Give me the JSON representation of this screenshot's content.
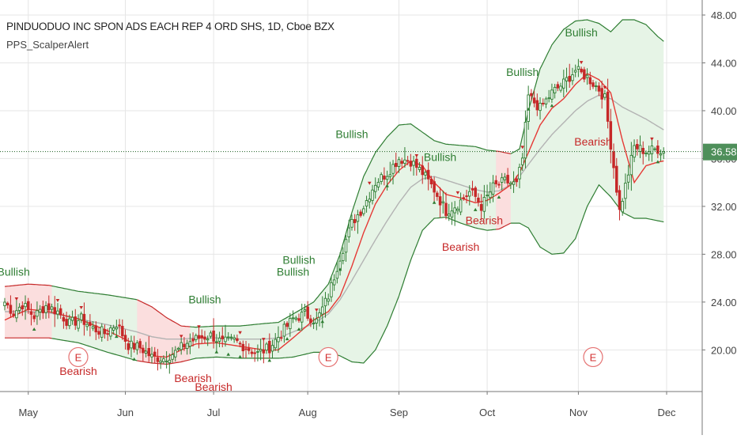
{
  "chart_data": {
    "type": "candlestick",
    "title": "PINDUODUO INC SPON ADS EACH REP 4 ORD SHS, 1D, Cboe BZX",
    "indicator": "PPS_ScalperAlert",
    "x_ticks": [
      "May",
      "Jun",
      "Jul",
      "Aug",
      "Sep",
      "Oct",
      "Nov",
      "Dec"
    ],
    "y_ticks": [
      "20.00",
      "24.00",
      "28.00",
      "32.00",
      "36.00",
      "40.00",
      "44.00",
      "48.00"
    ],
    "ylim": [
      16.3,
      49.0
    ],
    "last_price": 36.58,
    "last_price_label": "36.58",
    "colors": {
      "up": "#2e7d32",
      "down": "#c62828",
      "band_bull": "#e6f4e6",
      "band_bear": "#fbdede",
      "midline": "#b3b3b3",
      "ma": "#e53935",
      "price_line": "#1b5e20"
    },
    "bollinger": {
      "upper": [
        [
          0,
          25.3
        ],
        [
          8,
          25.5
        ],
        [
          15,
          25.4
        ],
        [
          25,
          24.9
        ],
        [
          35,
          24.6
        ],
        [
          45,
          24.2
        ],
        [
          50,
          23.6
        ],
        [
          55,
          22.7
        ],
        [
          60,
          22.0
        ],
        [
          65,
          21.9
        ],
        [
          72,
          22.0
        ],
        [
          80,
          22.0
        ],
        [
          88,
          22.2
        ],
        [
          93,
          22.3
        ],
        [
          98,
          23.0
        ],
        [
          105,
          24.0
        ],
        [
          110,
          25.5
        ],
        [
          114,
          28.0
        ],
        [
          118,
          31.5
        ],
        [
          122,
          34.5
        ],
        [
          126,
          36.5
        ],
        [
          130,
          37.8
        ],
        [
          134,
          38.8
        ],
        [
          138,
          38.9
        ],
        [
          142,
          38.2
        ],
        [
          146,
          37.5
        ],
        [
          150,
          37.2
        ],
        [
          155,
          37.1
        ],
        [
          160,
          37.0
        ],
        [
          164,
          36.7
        ],
        [
          168,
          36.6
        ],
        [
          172,
          36.4
        ],
        [
          175,
          36.8
        ],
        [
          178,
          40.0
        ],
        [
          182,
          43.5
        ],
        [
          186,
          45.5
        ],
        [
          190,
          46.8
        ],
        [
          194,
          47.5
        ],
        [
          198,
          47.6
        ],
        [
          202,
          47.3
        ],
        [
          206,
          46.6
        ],
        [
          210,
          47.6
        ],
        [
          214,
          47.6
        ],
        [
          218,
          47.2
        ],
        [
          222,
          46.2
        ],
        [
          224,
          45.8
        ]
      ],
      "middle": [
        [
          0,
          23.2
        ],
        [
          8,
          23.2
        ],
        [
          15,
          23.1
        ],
        [
          25,
          22.6
        ],
        [
          35,
          22.1
        ],
        [
          45,
          21.5
        ],
        [
          50,
          21.1
        ],
        [
          55,
          20.9
        ],
        [
          60,
          20.9
        ],
        [
          65,
          21.0
        ],
        [
          72,
          21.0
        ],
        [
          80,
          20.9
        ],
        [
          88,
          20.9
        ],
        [
          93,
          21.0
        ],
        [
          98,
          21.5
        ],
        [
          105,
          22.2
        ],
        [
          110,
          23.0
        ],
        [
          114,
          24.2
        ],
        [
          118,
          25.8
        ],
        [
          122,
          27.5
        ],
        [
          126,
          29.2
        ],
        [
          130,
          30.8
        ],
        [
          134,
          32.3
        ],
        [
          138,
          33.6
        ],
        [
          142,
          34.3
        ],
        [
          146,
          34.5
        ],
        [
          150,
          34.2
        ],
        [
          155,
          33.8
        ],
        [
          160,
          33.4
        ],
        [
          164,
          33.2
        ],
        [
          168,
          33.3
        ],
        [
          172,
          33.8
        ],
        [
          175,
          34.5
        ],
        [
          178,
          35.5
        ],
        [
          182,
          36.8
        ],
        [
          186,
          38.0
        ],
        [
          190,
          39.0
        ],
        [
          194,
          40.0
        ],
        [
          198,
          40.8
        ],
        [
          202,
          41.3
        ],
        [
          206,
          41.0
        ],
        [
          210,
          40.3
        ],
        [
          214,
          39.8
        ],
        [
          218,
          39.3
        ],
        [
          222,
          38.7
        ],
        [
          224,
          38.4
        ]
      ],
      "lower": [
        [
          0,
          21.0
        ],
        [
          8,
          21.0
        ],
        [
          15,
          21.0
        ],
        [
          25,
          20.6
        ],
        [
          35,
          19.8
        ],
        [
          45,
          19.1
        ],
        [
          50,
          18.9
        ],
        [
          55,
          18.8
        ],
        [
          60,
          19.0
        ],
        [
          65,
          19.3
        ],
        [
          72,
          19.4
        ],
        [
          80,
          19.3
        ],
        [
          88,
          19.3
        ],
        [
          93,
          19.3
        ],
        [
          98,
          19.4
        ],
        [
          105,
          19.8
        ],
        [
          110,
          19.8
        ],
        [
          114,
          19.5
        ],
        [
          118,
          19.0
        ],
        [
          122,
          18.9
        ],
        [
          126,
          20.0
        ],
        [
          130,
          22.0
        ],
        [
          134,
          24.5
        ],
        [
          138,
          27.5
        ],
        [
          142,
          30.0
        ],
        [
          146,
          31.0
        ],
        [
          150,
          31.1
        ],
        [
          155,
          30.6
        ],
        [
          160,
          30.2
        ],
        [
          164,
          30.0
        ],
        [
          168,
          30.1
        ],
        [
          172,
          30.6
        ],
        [
          175,
          30.6
        ],
        [
          178,
          30.2
        ],
        [
          182,
          28.6
        ],
        [
          186,
          28.0
        ],
        [
          190,
          28.1
        ],
        [
          194,
          29.3
        ],
        [
          198,
          32.0
        ],
        [
          202,
          33.8
        ],
        [
          206,
          32.8
        ],
        [
          210,
          31.5
        ],
        [
          214,
          31.0
        ],
        [
          218,
          31.0
        ],
        [
          222,
          30.8
        ],
        [
          224,
          30.7
        ]
      ]
    },
    "ma": [
      [
        0,
        22.5
      ],
      [
        8,
        23.4
      ],
      [
        15,
        23.2
      ],
      [
        25,
        22.6
      ],
      [
        35,
        21.6
      ],
      [
        45,
        20.4
      ],
      [
        50,
        19.5
      ],
      [
        55,
        19.4
      ],
      [
        60,
        20.0
      ],
      [
        65,
        20.5
      ],
      [
        72,
        20.6
      ],
      [
        80,
        20.3
      ],
      [
        88,
        20.0
      ],
      [
        93,
        20.0
      ],
      [
        98,
        21.0
      ],
      [
        105,
        22.5
      ],
      [
        110,
        23.2
      ],
      [
        114,
        24.5
      ],
      [
        118,
        27.0
      ],
      [
        122,
        29.8
      ],
      [
        126,
        32.2
      ],
      [
        130,
        33.8
      ],
      [
        134,
        35.0
      ],
      [
        138,
        35.8
      ],
      [
        142,
        35.4
      ],
      [
        146,
        34.0
      ],
      [
        150,
        33.0
      ],
      [
        155,
        32.7
      ],
      [
        160,
        32.3
      ],
      [
        164,
        32.5
      ],
      [
        168,
        33.1
      ],
      [
        172,
        33.8
      ],
      [
        175,
        34.8
      ],
      [
        178,
        36.5
      ],
      [
        182,
        38.8
      ],
      [
        186,
        40.2
      ],
      [
        190,
        41.0
      ],
      [
        194,
        42.2
      ],
      [
        198,
        43.1
      ],
      [
        202,
        42.6
      ],
      [
        206,
        41.5
      ],
      [
        210,
        37.5
      ],
      [
        214,
        34.0
      ],
      [
        218,
        35.4
      ],
      [
        222,
        35.7
      ],
      [
        224,
        35.8
      ]
    ],
    "bear_zones": [
      [
        0,
        16
      ],
      [
        45,
        63
      ],
      [
        167,
        172
      ]
    ],
    "key_closes": [
      [
        0,
        24.0
      ],
      [
        3,
        23.1
      ],
      [
        6,
        23.8
      ],
      [
        10,
        22.8
      ],
      [
        14,
        23.7
      ],
      [
        18,
        23.2
      ],
      [
        22,
        22.2
      ],
      [
        26,
        22.6
      ],
      [
        30,
        21.8
      ],
      [
        34,
        21.4
      ],
      [
        38,
        22.2
      ],
      [
        42,
        20.4
      ],
      [
        46,
        20.2
      ],
      [
        50,
        19.4
      ],
      [
        54,
        19.3
      ],
      [
        58,
        19.8
      ],
      [
        62,
        20.6
      ],
      [
        66,
        21.0
      ],
      [
        70,
        21.2
      ],
      [
        74,
        20.6
      ],
      [
        78,
        20.8
      ],
      [
        82,
        20.2
      ],
      [
        86,
        19.7
      ],
      [
        90,
        20.2
      ],
      [
        94,
        21.4
      ],
      [
        98,
        22.6
      ],
      [
        102,
        23.0
      ],
      [
        106,
        22.4
      ],
      [
        110,
        24.5
      ],
      [
        114,
        27.8
      ],
      [
        118,
        30.6
      ],
      [
        122,
        32.0
      ],
      [
        126,
        34.0
      ],
      [
        130,
        34.8
      ],
      [
        134,
        36.0
      ],
      [
        138,
        35.8
      ],
      [
        142,
        34.8
      ],
      [
        146,
        33.4
      ],
      [
        150,
        31.6
      ],
      [
        154,
        32.2
      ],
      [
        158,
        33.2
      ],
      [
        160,
        32.8
      ],
      [
        162,
        32.0
      ],
      [
        166,
        33.6
      ],
      [
        170,
        34.1
      ],
      [
        174,
        33.8
      ],
      [
        176,
        36.0
      ],
      [
        178,
        41.2
      ],
      [
        182,
        40.2
      ],
      [
        186,
        41.5
      ],
      [
        190,
        42.3
      ],
      [
        194,
        43.4
      ],
      [
        198,
        42.8
      ],
      [
        202,
        41.8
      ],
      [
        204,
        41.0
      ],
      [
        206,
        37.2
      ],
      [
        209,
        31.6
      ],
      [
        212,
        34.8
      ],
      [
        214,
        37.0
      ],
      [
        218,
        36.6
      ],
      [
        222,
        36.8
      ],
      [
        224,
        36.6
      ]
    ],
    "bull_labels": [
      {
        "text": "Bullish",
        "x": 3,
        "y": 26.2
      },
      {
        "text": "Bullish",
        "x": 68,
        "y": 23.9
      },
      {
        "text": "Bullish",
        "x": 98,
        "y": 26.2
      },
      {
        "text": "Bullish",
        "x": 100,
        "y": 27.2
      },
      {
        "text": "Bullish",
        "x": 118,
        "y": 37.7
      },
      {
        "text": "Bullish",
        "x": 148,
        "y": 35.8
      },
      {
        "text": "Bullish",
        "x": 176,
        "y": 42.9
      },
      {
        "text": "Bullish",
        "x": 196,
        "y": 46.2
      }
    ],
    "bear_labels": [
      {
        "text": "Bearish",
        "x": 25,
        "y": 17.9
      },
      {
        "text": "Bearish",
        "x": 64,
        "y": 17.3
      },
      {
        "text": "Bearish",
        "x": 71,
        "y": 16.6
      },
      {
        "text": "Bearish",
        "x": 155,
        "y": 28.3
      },
      {
        "text": "Bearish",
        "x": 163,
        "y": 30.5
      },
      {
        "text": "Bearish",
        "x": 200,
        "y": 37.1
      }
    ],
    "earnings": [
      {
        "text": "E",
        "x": 25,
        "y": 19.4
      },
      {
        "text": "E",
        "x": 110,
        "y": 19.4
      },
      {
        "text": "E",
        "x": 200,
        "y": 19.4
      }
    ]
  }
}
